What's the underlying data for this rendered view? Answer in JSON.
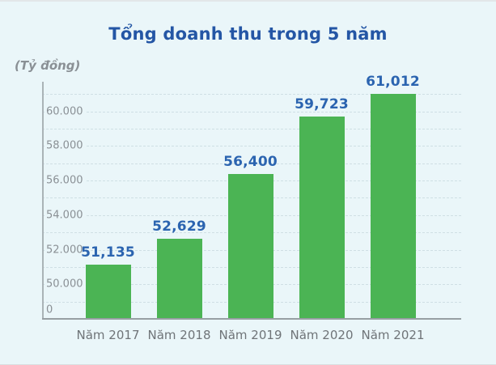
{
  "title": "Tổng doanh thu trong 5 năm",
  "axis_unit_label": "(Tỷ đồng)",
  "colors": {
    "background": "#eaf6f9",
    "bar": "#4bb454",
    "title": "#2456a5",
    "value_label": "#2b64b0",
    "tick_label": "#8a9095",
    "category_label": "#6f7478",
    "gridline": "#cfdfe4",
    "axis_line": "#979fa3"
  },
  "chart_data": {
    "type": "bar",
    "title": "Tổng doanh thu trong 5 năm",
    "ylabel": "(Tỷ đồng)",
    "xlabel": "",
    "categories": [
      "Năm 2017",
      "Năm 2018",
      "Năm 2019",
      "Năm 2020",
      "Năm 2021"
    ],
    "values": [
      51135,
      52629,
      56400,
      59723,
      61012
    ],
    "value_labels": [
      "51,135",
      "52,629",
      "56,400",
      "59,723",
      "61,012"
    ],
    "y_ticks": [
      {
        "label": "60.000",
        "value": 60000
      },
      {
        "label": "58.000",
        "value": 58000
      },
      {
        "label": "56.000",
        "value": 56000
      },
      {
        "label": "54.000",
        "value": 54000
      },
      {
        "label": "52.000",
        "value": 52000
      },
      {
        "label": "50.000",
        "value": 50000
      },
      {
        "label": "0",
        "value": 0
      }
    ],
    "axis_break": true,
    "ylim_display": [
      49000,
      61000
    ],
    "grid": "horizontal dashed, every 1000 from 49000 to 61000",
    "legend": "none",
    "bar_color": "#4bb454"
  }
}
